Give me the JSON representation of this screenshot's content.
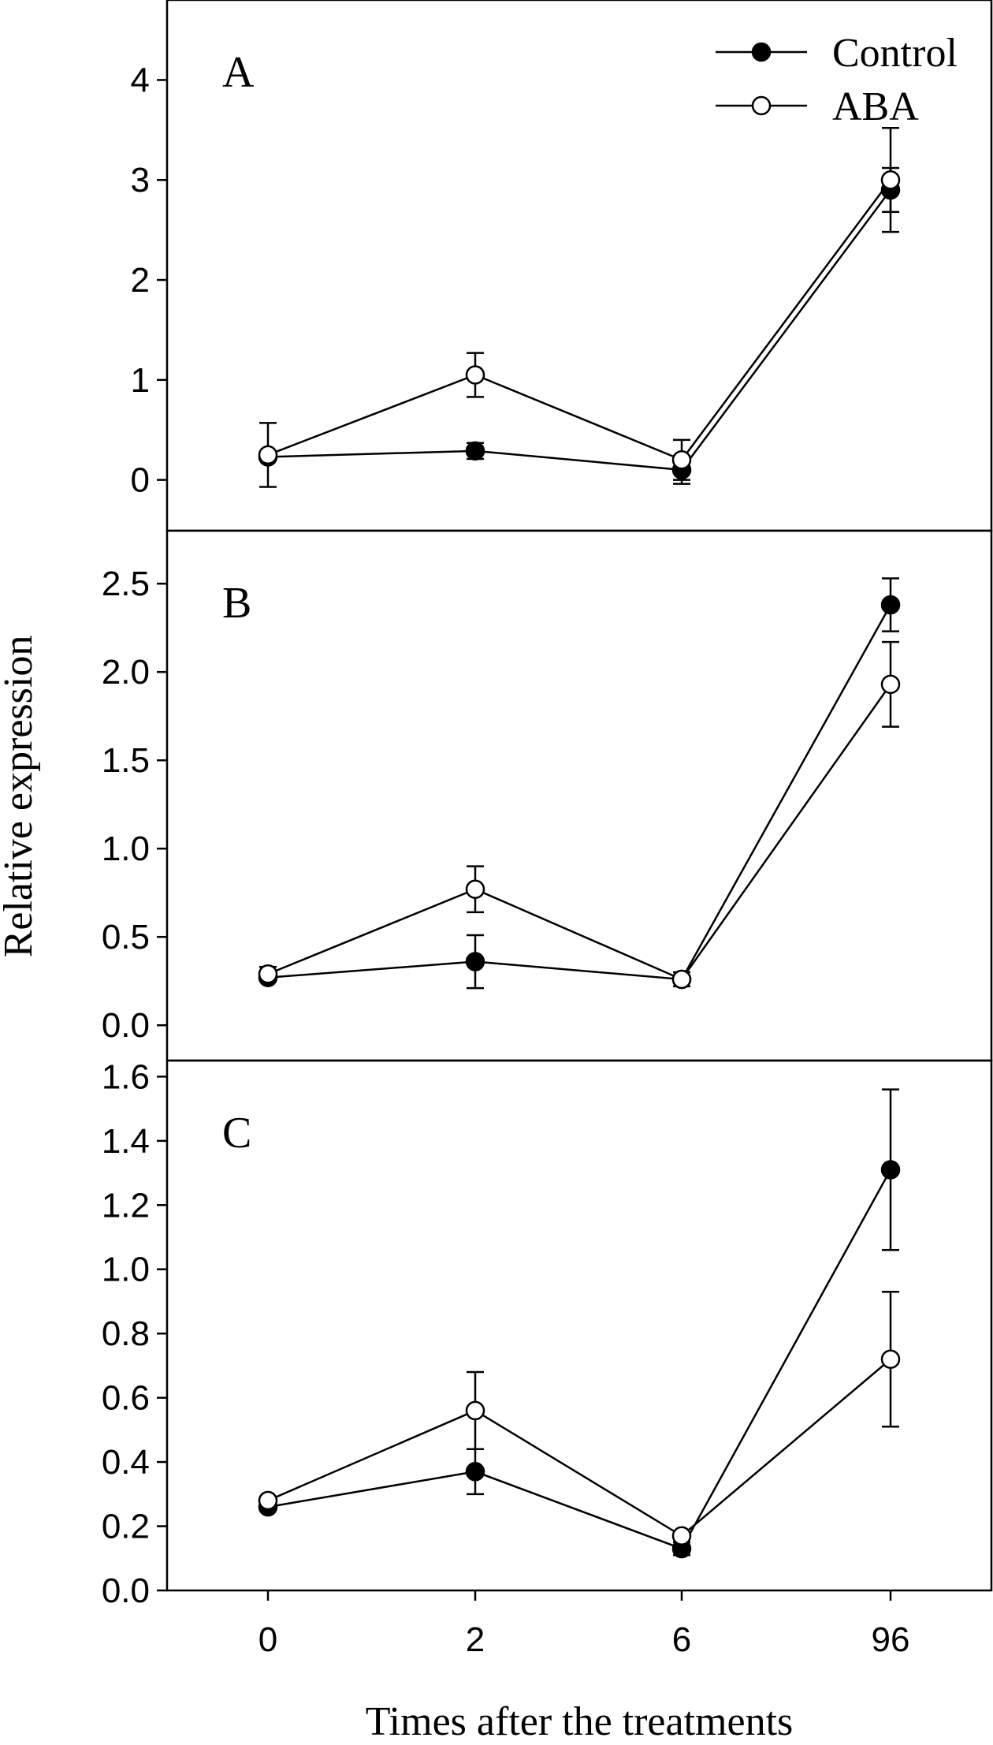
{
  "chart_data": {
    "type": "line",
    "xlabel": "Times after the treatments",
    "ylabel": "Relative expression",
    "categories": [
      "0",
      "2",
      "6",
      "96"
    ],
    "legend": {
      "position": "top-right",
      "entries": [
        "Control",
        "ABA"
      ]
    },
    "panels": [
      {
        "label": "A",
        "ylim": [
          -0.5,
          4.8
        ],
        "yticks": [
          0,
          1,
          2,
          3,
          4
        ],
        "ytick_labels": [
          "0",
          "1",
          "2",
          "3",
          "4"
        ],
        "series": [
          {
            "name": "Control",
            "values": [
              0.23,
              0.29,
              0.1,
              2.9
            ],
            "errors": [
              0.0,
              0.08,
              0.14,
              0.22
            ]
          },
          {
            "name": "ABA",
            "values": [
              0.25,
              1.05,
              0.2,
              3.0
            ],
            "errors": [
              0.32,
              0.22,
              0.2,
              0.52
            ]
          }
        ]
      },
      {
        "label": "B",
        "ylim": [
          -0.2,
          2.8
        ],
        "yticks": [
          0.0,
          0.5,
          1.0,
          1.5,
          2.0,
          2.5
        ],
        "ytick_labels": [
          "0.0",
          "0.5",
          "1.0",
          "1.5",
          "2.0",
          "2.5"
        ],
        "series": [
          {
            "name": "Control",
            "values": [
              0.27,
              0.36,
              0.26,
              2.38
            ],
            "errors": [
              0.0,
              0.15,
              0.0,
              0.15
            ]
          },
          {
            "name": "ABA",
            "values": [
              0.29,
              0.77,
              0.26,
              1.93
            ],
            "errors": [
              0.04,
              0.13,
              0.04,
              0.24
            ]
          }
        ]
      },
      {
        "label": "C",
        "ylim": [
          0.0,
          1.65
        ],
        "yticks": [
          0.0,
          0.2,
          0.4,
          0.6,
          0.8,
          1.0,
          1.2,
          1.4,
          1.6
        ],
        "ytick_labels": [
          "0.0",
          "0.2",
          "0.4",
          "0.6",
          "0.8",
          "1.0",
          "1.2",
          "1.4",
          "1.6"
        ],
        "series": [
          {
            "name": "Control",
            "values": [
              0.26,
              0.37,
              0.13,
              1.31
            ],
            "errors": [
              0.0,
              0.07,
              0.02,
              0.25
            ]
          },
          {
            "name": "ABA",
            "values": [
              0.28,
              0.56,
              0.17,
              0.72
            ],
            "errors": [
              0.0,
              0.12,
              0.0,
              0.21
            ]
          }
        ]
      }
    ]
  }
}
